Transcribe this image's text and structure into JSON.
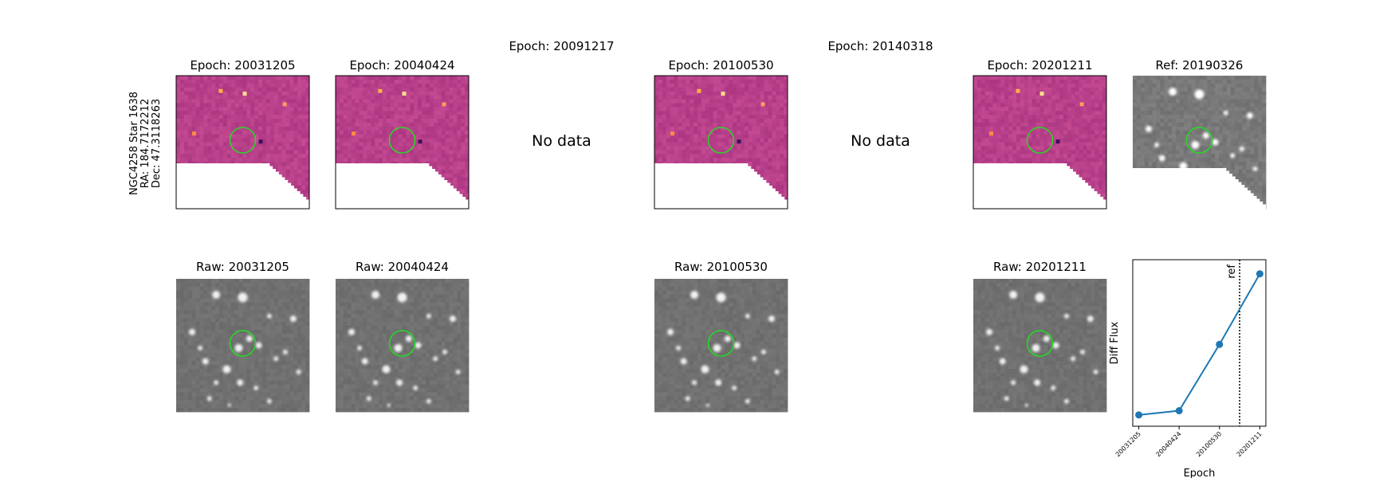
{
  "side_label": [
    "NGC4258 Star 1638",
    "RA: 184.7172212",
    "Dec: 47.3118263"
  ],
  "no_data_text": "No data",
  "epoch_panels": [
    {
      "title": "Epoch: 20031205",
      "has_data": true,
      "kind": "diff"
    },
    {
      "title": "Epoch: 20040424",
      "has_data": true,
      "kind": "diff"
    },
    {
      "title": "Epoch: 20091217",
      "has_data": false
    },
    {
      "title": "Epoch: 20100530",
      "has_data": true,
      "kind": "diff"
    },
    {
      "title": "Epoch: 20140318",
      "has_data": false
    },
    {
      "title": "Epoch: 20201211",
      "has_data": true,
      "kind": "diff"
    },
    {
      "title": "Ref: 20190326",
      "has_data": true,
      "kind": "ref"
    }
  ],
  "raw_panels": [
    {
      "title": "Raw: 20031205",
      "col": 0
    },
    {
      "title": "Raw: 20040424",
      "col": 1
    },
    {
      "title": "Raw: 20100530",
      "col": 3
    },
    {
      "title": "Raw: 20201211",
      "col": 5
    }
  ],
  "colors": {
    "diff_background": "#b8408a",
    "marker_circle": "#22dd22",
    "line_series": "#1f77b4",
    "raw_background": "#6e6e6e"
  },
  "chart_data": {
    "type": "line",
    "categories": [
      "20031205",
      "20040424",
      "20100530",
      "20201211"
    ],
    "x_positions": [
      0,
      1,
      2,
      3
    ],
    "values": [
      0.0,
      0.03,
      0.5,
      1.0
    ],
    "xlabel": "Epoch",
    "ylabel": "Diff Flux",
    "ylim": [
      -0.08,
      1.1
    ],
    "reference_line": {
      "label": "ref",
      "x_position": 2.5,
      "style": "dotted"
    },
    "grid": false
  }
}
